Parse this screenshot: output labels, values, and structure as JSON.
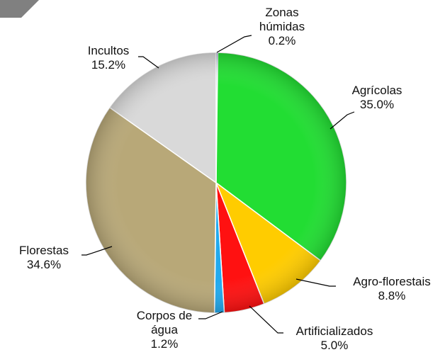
{
  "chart_data": {
    "type": "pie",
    "categories": [
      "Zonas húmidas",
      "Agrícolas",
      "Agro-florestais",
      "Artificializados",
      "Corpos de água",
      "Florestas",
      "Incultos"
    ],
    "values": [
      0.2,
      35.0,
      8.8,
      5.0,
      1.2,
      34.6,
      15.2
    ],
    "value_labels": [
      "0.2%",
      "35.0%",
      "8.8%",
      "5.0%",
      "1.2%",
      "34.6%",
      "15.2%"
    ],
    "colors": [
      "#1f3c88",
      "#22dd33",
      "#ffcc00",
      "#ff1111",
      "#22aaee",
      "#b8a878",
      "#d9d9d9"
    ]
  }
}
